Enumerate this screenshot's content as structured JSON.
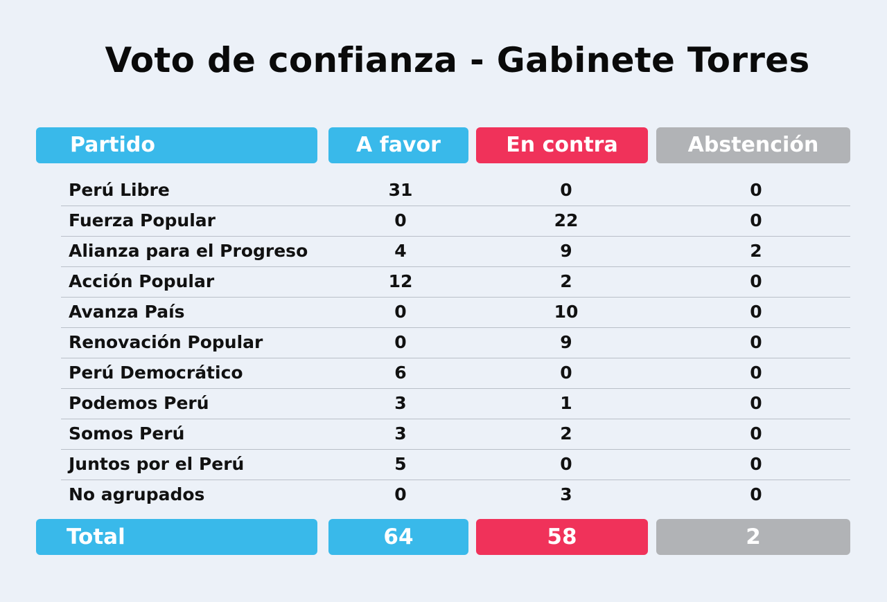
{
  "colors": {
    "background": "#ecf1f8",
    "favor": "#39b9ea",
    "contra": "#f0325a",
    "abstencion": "#b1b3b6"
  },
  "chart_data": {
    "type": "table",
    "title": "Voto de confianza - Gabinete Torres",
    "columns": [
      "Partido",
      "A favor",
      "En contra",
      "Abstención"
    ],
    "rows": [
      {
        "partido": "Perú Libre",
        "a_favor": 31,
        "en_contra": 0,
        "abstencion": 0
      },
      {
        "partido": "Fuerza Popular",
        "a_favor": 0,
        "en_contra": 22,
        "abstencion": 0
      },
      {
        "partido": "Alianza para el Progreso",
        "a_favor": 4,
        "en_contra": 9,
        "abstencion": 2
      },
      {
        "partido": "Acción Popular",
        "a_favor": 12,
        "en_contra": 2,
        "abstencion": 0
      },
      {
        "partido": "Avanza País",
        "a_favor": 0,
        "en_contra": 10,
        "abstencion": 0
      },
      {
        "partido": "Renovación Popular",
        "a_favor": 0,
        "en_contra": 9,
        "abstencion": 0
      },
      {
        "partido": "Perú Democrático",
        "a_favor": 6,
        "en_contra": 0,
        "abstencion": 0
      },
      {
        "partido": "Podemos Perú",
        "a_favor": 3,
        "en_contra": 1,
        "abstencion": 0
      },
      {
        "partido": "Somos Perú",
        "a_favor": 3,
        "en_contra": 2,
        "abstencion": 0
      },
      {
        "partido": "Juntos por el Perú",
        "a_favor": 5,
        "en_contra": 0,
        "abstencion": 0
      },
      {
        "partido": "No agrupados",
        "a_favor": 0,
        "en_contra": 3,
        "abstencion": 0
      }
    ],
    "total": {
      "label": "Total",
      "a_favor": 64,
      "en_contra": 58,
      "abstencion": 2
    }
  }
}
